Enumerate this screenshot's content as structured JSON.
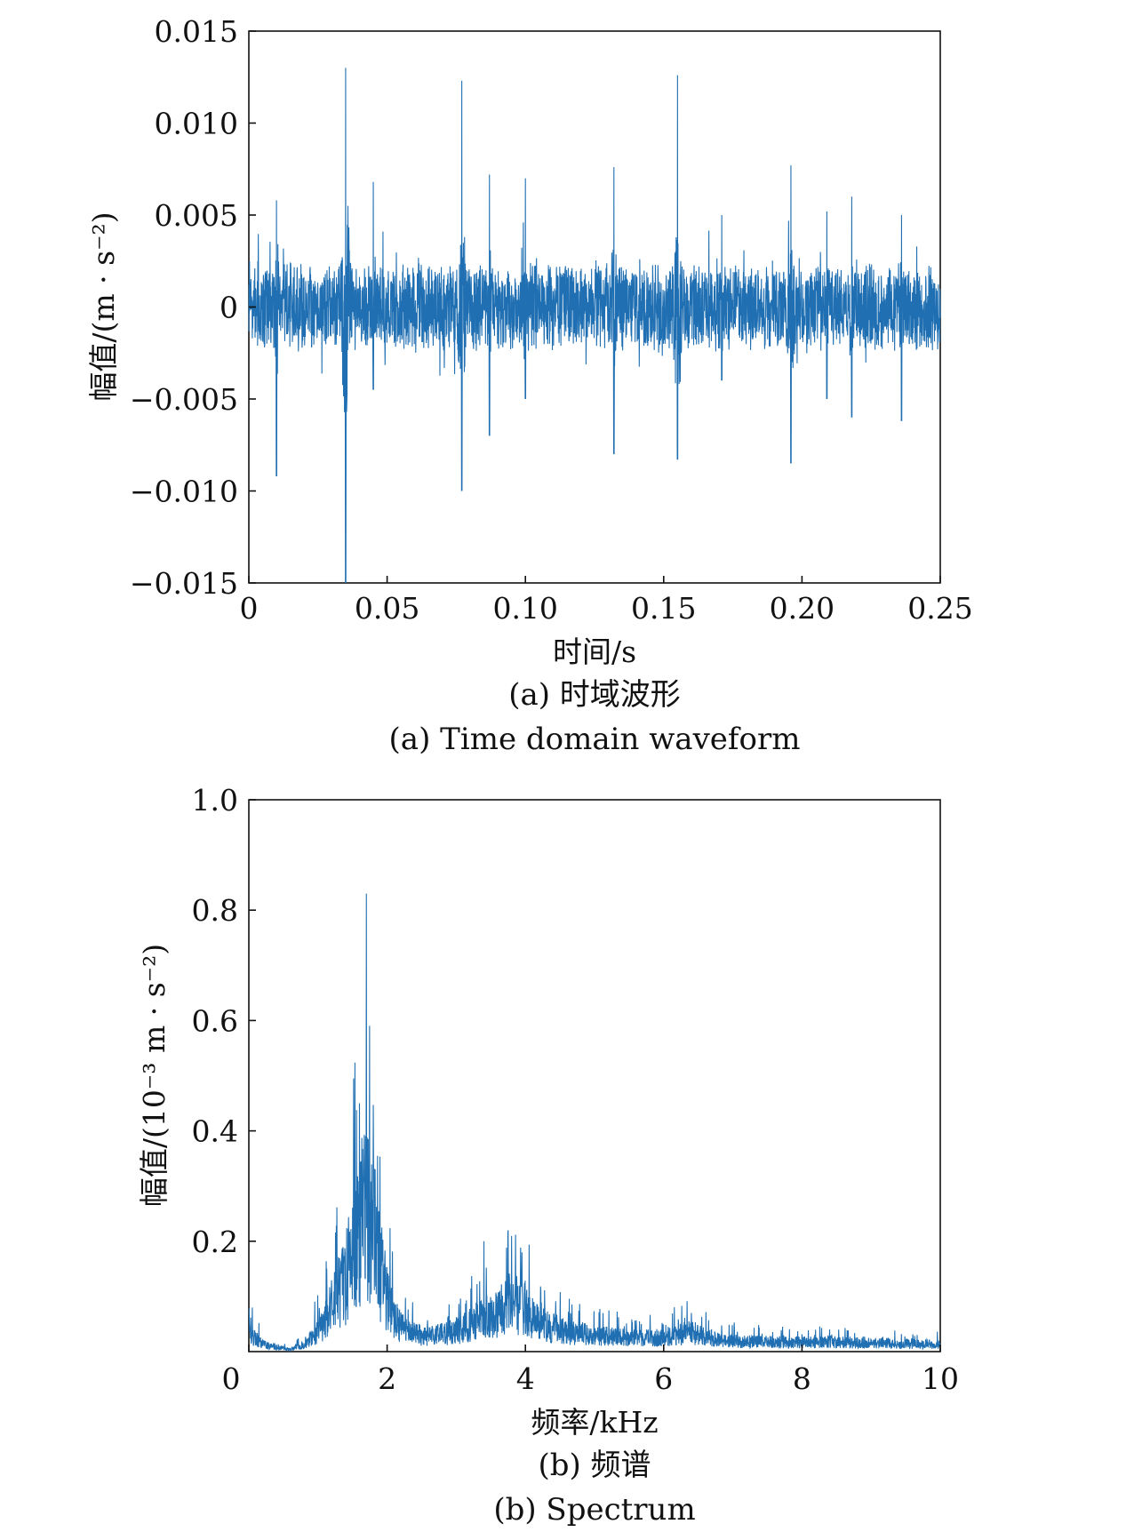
{
  "chart_data": [
    {
      "type": "line",
      "subject": "time domain waveform",
      "xlabel": "时间/s",
      "ylabel": "幅值/(m · s⁻²)",
      "xlim": [
        0,
        0.25
      ],
      "ylim": [
        -0.015,
        0.015
      ],
      "x_ticks": [
        "0",
        "0.05",
        "0.10",
        "0.15",
        "0.20",
        "0.25"
      ],
      "y_ticks": [
        "0.015",
        "0.010",
        "0.005",
        "0",
        "−0.005",
        "−0.010",
        "−0.015"
      ],
      "caption_cn": "(a) 时域波形",
      "caption_en": "(a) Time domain waveform",
      "color": "#1f6fb2",
      "grid": false,
      "baseline_envelope": 0.0026,
      "bursts": [
        {
          "x": 0.01,
          "peak_pos": 0.0058,
          "peak_neg": -0.0092
        },
        {
          "x": 0.035,
          "peak_pos": 0.013,
          "peak_neg": -0.015
        },
        {
          "x": 0.045,
          "peak_pos": 0.0068,
          "peak_neg": -0.0045
        },
        {
          "x": 0.077,
          "peak_pos": 0.0123,
          "peak_neg": -0.01
        },
        {
          "x": 0.087,
          "peak_pos": 0.0072,
          "peak_neg": -0.007
        },
        {
          "x": 0.1,
          "peak_pos": 0.007,
          "peak_neg": -0.005
        },
        {
          "x": 0.132,
          "peak_pos": 0.0076,
          "peak_neg": -0.008
        },
        {
          "x": 0.155,
          "peak_pos": 0.0126,
          "peak_neg": -0.0083
        },
        {
          "x": 0.171,
          "peak_pos": 0.005,
          "peak_neg": -0.004
        },
        {
          "x": 0.196,
          "peak_pos": 0.0077,
          "peak_neg": -0.0085
        },
        {
          "x": 0.209,
          "peak_pos": 0.0052,
          "peak_neg": -0.005
        },
        {
          "x": 0.218,
          "peak_pos": 0.006,
          "peak_neg": -0.006
        },
        {
          "x": 0.236,
          "peak_pos": 0.005,
          "peak_neg": -0.0062
        }
      ]
    },
    {
      "type": "line",
      "subject": "spectrum",
      "xlabel": "频率/kHz",
      "ylabel": "幅值/(10⁻³ m · s⁻²)",
      "xlim": [
        0,
        10
      ],
      "ylim": [
        0,
        1.0
      ],
      "x_ticks": [
        "0",
        "2",
        "4",
        "6",
        "8",
        "10"
      ],
      "y_ticks": [
        "1.0",
        "0.8",
        "0.6",
        "0.4",
        "0.2"
      ],
      "caption_cn": "(b) 频谱",
      "caption_en": "(b) Spectrum",
      "color": "#1f6fb2",
      "grid": false,
      "peaks": [
        {
          "x": 0.05,
          "y": 0.08
        },
        {
          "x": 1.6,
          "y": 0.45
        },
        {
          "x": 1.7,
          "y": 0.83
        },
        {
          "x": 3.4,
          "y": 0.2
        },
        {
          "x": 3.75,
          "y": 0.22
        },
        {
          "x": 3.95,
          "y": 0.18
        },
        {
          "x": 6.4,
          "y": 0.07
        },
        {
          "x": 8.4,
          "y": 0.04
        }
      ],
      "envelope": [
        [
          0.0,
          0.03
        ],
        [
          0.3,
          0.01
        ],
        [
          0.6,
          0.004
        ],
        [
          0.8,
          0.012
        ],
        [
          1.0,
          0.04
        ],
        [
          1.2,
          0.08
        ],
        [
          1.4,
          0.13
        ],
        [
          1.55,
          0.2
        ],
        [
          1.65,
          0.25
        ],
        [
          1.8,
          0.22
        ],
        [
          1.95,
          0.12
        ],
        [
          2.1,
          0.06
        ],
        [
          2.3,
          0.035
        ],
        [
          2.6,
          0.028
        ],
        [
          3.0,
          0.035
        ],
        [
          3.3,
          0.055
        ],
        [
          3.6,
          0.07
        ],
        [
          3.8,
          0.085
        ],
        [
          4.0,
          0.08
        ],
        [
          4.2,
          0.05
        ],
        [
          4.6,
          0.035
        ],
        [
          5.0,
          0.03
        ],
        [
          5.5,
          0.025
        ],
        [
          6.0,
          0.025
        ],
        [
          6.4,
          0.035
        ],
        [
          6.8,
          0.02
        ],
        [
          7.5,
          0.017
        ],
        [
          8.5,
          0.017
        ],
        [
          9.5,
          0.014
        ],
        [
          10.0,
          0.013
        ]
      ]
    }
  ]
}
